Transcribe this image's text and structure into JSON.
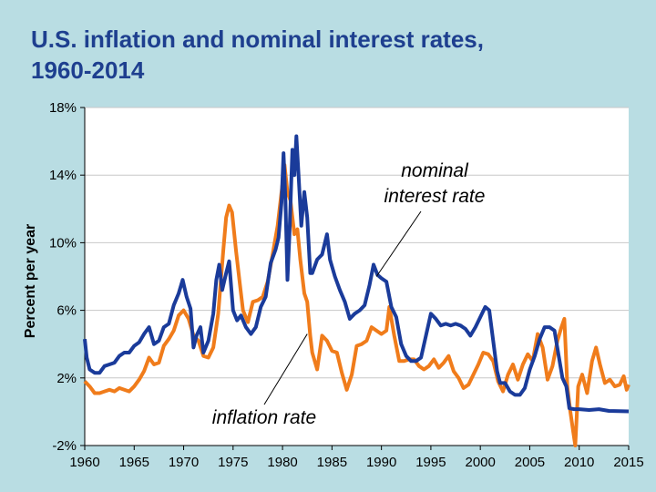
{
  "slide": {
    "title_line1": "U.S. inflation and nominal interest rates,",
    "title_line2": "1960-2014"
  },
  "colors": {
    "background": "#b9dde3",
    "title": "#1e3f8f",
    "nominal": "#1a3b9a",
    "inflation": "#f07c1b",
    "plot_bg": "#ffffff",
    "grid": "#c8c8c8"
  },
  "chart_data": {
    "type": "line",
    "title": "U.S. inflation and nominal interest rates, 1960-2014",
    "xlabel": "",
    "ylabel": "Percent per year",
    "xlim": [
      1960,
      2015
    ],
    "ylim": [
      -2,
      18
    ],
    "x_ticks": [
      1960,
      1965,
      1970,
      1975,
      1980,
      1985,
      1990,
      1995,
      2000,
      2005,
      2010,
      2015
    ],
    "x_tick_labels": [
      "1960",
      "1965",
      "1970",
      "1975",
      "1980",
      "1985",
      "1990",
      "1995",
      "2000",
      "2005",
      "2010",
      "2015"
    ],
    "y_ticks": [
      -2,
      2,
      6,
      10,
      14,
      18
    ],
    "y_tick_labels": [
      "-2%",
      "2%",
      "6%",
      "10%",
      "14%",
      "18%"
    ],
    "grid": true,
    "annotations": [
      {
        "text": "nominal interest rate",
        "line1": "nominal",
        "line2": "interest rate",
        "series": "nominal",
        "point": [
          1989.5,
          8.0
        ]
      },
      {
        "text": "inflation rate",
        "series": "inflation",
        "point": [
          1982.5,
          4.6
        ]
      }
    ],
    "series": [
      {
        "name": "nominal interest rate",
        "points": [
          [
            1960.0,
            4.3
          ],
          [
            1960.2,
            3.2
          ],
          [
            1960.5,
            2.5
          ],
          [
            1961.0,
            2.3
          ],
          [
            1961.5,
            2.3
          ],
          [
            1962.0,
            2.7
          ],
          [
            1962.5,
            2.8
          ],
          [
            1963.0,
            2.9
          ],
          [
            1963.5,
            3.3
          ],
          [
            1964.0,
            3.5
          ],
          [
            1964.5,
            3.5
          ],
          [
            1965.0,
            3.9
          ],
          [
            1965.5,
            4.1
          ],
          [
            1966.0,
            4.6
          ],
          [
            1966.5,
            5.0
          ],
          [
            1967.0,
            4.0
          ],
          [
            1967.5,
            4.2
          ],
          [
            1968.0,
            5.0
          ],
          [
            1968.5,
            5.2
          ],
          [
            1969.0,
            6.3
          ],
          [
            1969.5,
            7.0
          ],
          [
            1969.9,
            7.8
          ],
          [
            1970.3,
            6.8
          ],
          [
            1970.7,
            6.1
          ],
          [
            1971.0,
            3.8
          ],
          [
            1971.3,
            4.5
          ],
          [
            1971.7,
            5.0
          ],
          [
            1972.0,
            3.5
          ],
          [
            1972.5,
            4.2
          ],
          [
            1973.0,
            5.8
          ],
          [
            1973.3,
            7.8
          ],
          [
            1973.6,
            8.7
          ],
          [
            1973.9,
            7.2
          ],
          [
            1974.3,
            8.2
          ],
          [
            1974.6,
            8.9
          ],
          [
            1975.0,
            6.0
          ],
          [
            1975.4,
            5.4
          ],
          [
            1975.8,
            5.7
          ],
          [
            1976.3,
            5.0
          ],
          [
            1976.8,
            4.6
          ],
          [
            1977.3,
            5.0
          ],
          [
            1977.8,
            6.2
          ],
          [
            1978.3,
            6.8
          ],
          [
            1978.8,
            8.8
          ],
          [
            1979.3,
            9.6
          ],
          [
            1979.6,
            10.3
          ],
          [
            1979.9,
            12.4
          ],
          [
            1980.1,
            15.3
          ],
          [
            1980.3,
            12.5
          ],
          [
            1980.5,
            7.8
          ],
          [
            1980.7,
            10.5
          ],
          [
            1981.0,
            15.5
          ],
          [
            1981.2,
            14.0
          ],
          [
            1981.4,
            16.3
          ],
          [
            1981.6,
            14.2
          ],
          [
            1981.9,
            11.0
          ],
          [
            1982.2,
            13.0
          ],
          [
            1982.5,
            11.5
          ],
          [
            1982.8,
            8.2
          ],
          [
            1983.0,
            8.2
          ],
          [
            1983.5,
            9.0
          ],
          [
            1984.0,
            9.3
          ],
          [
            1984.5,
            10.5
          ],
          [
            1984.8,
            9.0
          ],
          [
            1985.3,
            8.0
          ],
          [
            1985.8,
            7.2
          ],
          [
            1986.3,
            6.5
          ],
          [
            1986.8,
            5.5
          ],
          [
            1987.3,
            5.8
          ],
          [
            1987.8,
            6.0
          ],
          [
            1988.3,
            6.3
          ],
          [
            1988.8,
            7.5
          ],
          [
            1989.2,
            8.7
          ],
          [
            1989.6,
            8.1
          ],
          [
            1990.0,
            7.9
          ],
          [
            1990.5,
            7.7
          ],
          [
            1991.0,
            6.2
          ],
          [
            1991.5,
            5.6
          ],
          [
            1992.0,
            4.0
          ],
          [
            1992.5,
            3.3
          ],
          [
            1993.0,
            3.0
          ],
          [
            1993.5,
            3.0
          ],
          [
            1994.0,
            3.2
          ],
          [
            1994.5,
            4.5
          ],
          [
            1995.0,
            5.8
          ],
          [
            1995.5,
            5.5
          ],
          [
            1996.0,
            5.1
          ],
          [
            1996.5,
            5.2
          ],
          [
            1997.0,
            5.1
          ],
          [
            1997.5,
            5.2
          ],
          [
            1998.0,
            5.1
          ],
          [
            1998.5,
            4.9
          ],
          [
            1999.0,
            4.5
          ],
          [
            1999.5,
            5.0
          ],
          [
            2000.0,
            5.6
          ],
          [
            2000.5,
            6.2
          ],
          [
            2000.9,
            6.0
          ],
          [
            2001.3,
            4.2
          ],
          [
            2001.7,
            2.4
          ],
          [
            2002.0,
            1.7
          ],
          [
            2002.5,
            1.7
          ],
          [
            2003.0,
            1.2
          ],
          [
            2003.5,
            1.0
          ],
          [
            2004.0,
            1.0
          ],
          [
            2004.5,
            1.4
          ],
          [
            2005.0,
            2.5
          ],
          [
            2005.5,
            3.3
          ],
          [
            2006.0,
            4.3
          ],
          [
            2006.5,
            5.0
          ],
          [
            2007.0,
            5.0
          ],
          [
            2007.5,
            4.8
          ],
          [
            2007.9,
            3.4
          ],
          [
            2008.3,
            2.0
          ],
          [
            2008.7,
            1.5
          ],
          [
            2009.0,
            0.2
          ],
          [
            2009.5,
            0.15
          ],
          [
            2010.0,
            0.15
          ],
          [
            2011.0,
            0.1
          ],
          [
            2012.0,
            0.15
          ],
          [
            2013.0,
            0.05
          ],
          [
            2014.0,
            0.03
          ],
          [
            2015.0,
            0.02
          ]
        ]
      },
      {
        "name": "inflation rate",
        "points": [
          [
            1960.0,
            1.8
          ],
          [
            1960.5,
            1.5
          ],
          [
            1961.0,
            1.1
          ],
          [
            1961.5,
            1.1
          ],
          [
            1962.0,
            1.2
          ],
          [
            1962.5,
            1.3
          ],
          [
            1963.0,
            1.2
          ],
          [
            1963.5,
            1.4
          ],
          [
            1964.0,
            1.3
          ],
          [
            1964.5,
            1.2
          ],
          [
            1965.0,
            1.5
          ],
          [
            1965.5,
            1.9
          ],
          [
            1966.0,
            2.4
          ],
          [
            1966.5,
            3.2
          ],
          [
            1967.0,
            2.8
          ],
          [
            1967.5,
            2.9
          ],
          [
            1968.0,
            3.9
          ],
          [
            1968.5,
            4.3
          ],
          [
            1969.0,
            4.8
          ],
          [
            1969.5,
            5.7
          ],
          [
            1970.0,
            6.0
          ],
          [
            1970.5,
            5.5
          ],
          [
            1971.0,
            4.5
          ],
          [
            1971.5,
            4.2
          ],
          [
            1972.0,
            3.3
          ],
          [
            1972.5,
            3.2
          ],
          [
            1973.0,
            3.8
          ],
          [
            1973.5,
            5.8
          ],
          [
            1974.0,
            9.5
          ],
          [
            1974.3,
            11.5
          ],
          [
            1974.6,
            12.2
          ],
          [
            1974.9,
            11.8
          ],
          [
            1975.3,
            9.5
          ],
          [
            1975.7,
            7.5
          ],
          [
            1976.0,
            6.0
          ],
          [
            1976.5,
            5.3
          ],
          [
            1977.0,
            6.5
          ],
          [
            1977.5,
            6.6
          ],
          [
            1978.0,
            6.8
          ],
          [
            1978.5,
            7.7
          ],
          [
            1979.0,
            9.3
          ],
          [
            1979.5,
            11.0
          ],
          [
            1980.0,
            13.5
          ],
          [
            1980.2,
            14.6
          ],
          [
            1980.5,
            13.0
          ],
          [
            1980.8,
            12.5
          ],
          [
            1981.2,
            10.5
          ],
          [
            1981.5,
            10.8
          ],
          [
            1981.8,
            9.0
          ],
          [
            1982.2,
            7.0
          ],
          [
            1982.5,
            6.5
          ],
          [
            1982.8,
            4.5
          ],
          [
            1983.0,
            3.5
          ],
          [
            1983.5,
            2.5
          ],
          [
            1984.0,
            4.5
          ],
          [
            1984.5,
            4.2
          ],
          [
            1985.0,
            3.6
          ],
          [
            1985.5,
            3.5
          ],
          [
            1986.0,
            2.3
          ],
          [
            1986.5,
            1.3
          ],
          [
            1987.0,
            2.2
          ],
          [
            1987.5,
            3.9
          ],
          [
            1988.0,
            4.0
          ],
          [
            1988.5,
            4.2
          ],
          [
            1989.0,
            5.0
          ],
          [
            1989.5,
            4.8
          ],
          [
            1990.0,
            4.6
          ],
          [
            1990.5,
            4.8
          ],
          [
            1990.8,
            6.2
          ],
          [
            1991.3,
            4.5
          ],
          [
            1991.8,
            3.0
          ],
          [
            1992.3,
            3.0
          ],
          [
            1992.8,
            3.1
          ],
          [
            1993.3,
            3.1
          ],
          [
            1993.8,
            2.7
          ],
          [
            1994.3,
            2.5
          ],
          [
            1994.8,
            2.7
          ],
          [
            1995.3,
            3.1
          ],
          [
            1995.8,
            2.6
          ],
          [
            1996.3,
            2.9
          ],
          [
            1996.8,
            3.3
          ],
          [
            1997.3,
            2.4
          ],
          [
            1997.8,
            2.0
          ],
          [
            1998.3,
            1.4
          ],
          [
            1998.8,
            1.6
          ],
          [
            1999.3,
            2.2
          ],
          [
            1999.8,
            2.8
          ],
          [
            2000.3,
            3.5
          ],
          [
            2000.8,
            3.4
          ],
          [
            2001.3,
            3.0
          ],
          [
            2001.8,
            1.8
          ],
          [
            2002.3,
            1.2
          ],
          [
            2002.8,
            2.2
          ],
          [
            2003.3,
            2.8
          ],
          [
            2003.8,
            1.9
          ],
          [
            2004.3,
            2.8
          ],
          [
            2004.8,
            3.4
          ],
          [
            2005.3,
            3.0
          ],
          [
            2005.8,
            4.6
          ],
          [
            2006.3,
            3.8
          ],
          [
            2006.8,
            1.9
          ],
          [
            2007.3,
            2.7
          ],
          [
            2007.8,
            4.2
          ],
          [
            2008.2,
            5.0
          ],
          [
            2008.5,
            5.5
          ],
          [
            2008.8,
            1.5
          ],
          [
            2009.1,
            0.0
          ],
          [
            2009.4,
            -1.2
          ],
          [
            2009.6,
            -2.0
          ],
          [
            2009.9,
            1.5
          ],
          [
            2010.3,
            2.2
          ],
          [
            2010.8,
            1.1
          ],
          [
            2011.3,
            3.0
          ],
          [
            2011.7,
            3.8
          ],
          [
            2012.1,
            2.8
          ],
          [
            2012.6,
            1.7
          ],
          [
            2013.1,
            1.9
          ],
          [
            2013.6,
            1.5
          ],
          [
            2014.1,
            1.6
          ],
          [
            2014.5,
            2.1
          ],
          [
            2014.8,
            1.3
          ],
          [
            2015.0,
            1.6
          ]
        ]
      }
    ]
  }
}
